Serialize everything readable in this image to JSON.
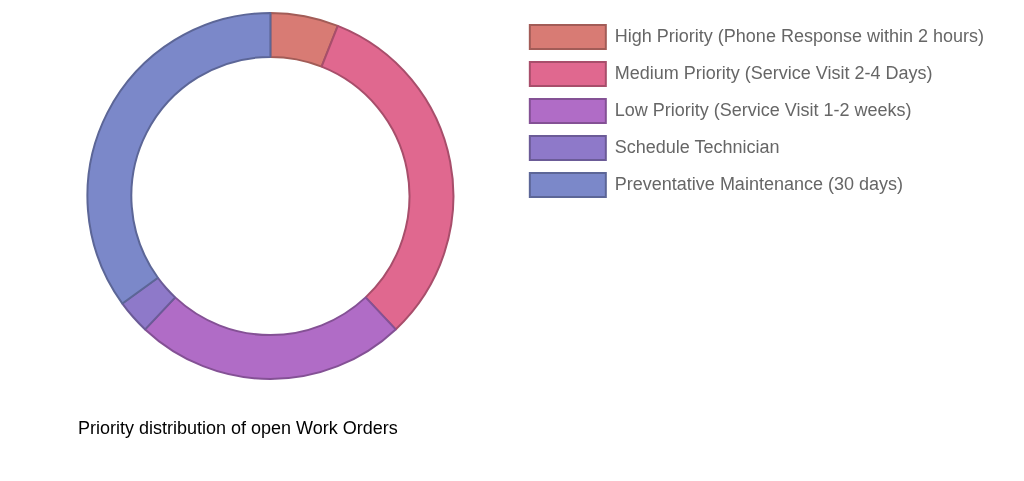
{
  "chart_data": {
    "type": "donut",
    "title": "Priority distribution of open Work Orders",
    "categories": [
      "High Priority (Phone Response within 2 hours)",
      "Medium Priority (Service Visit 2-4 Days)",
      "Low Priority (Service Visit 1-2 weeks)",
      "Schedule Technician",
      "Preventative Maintenance (30 days)"
    ],
    "values": [
      6,
      32,
      24,
      3,
      35
    ],
    "colors": [
      "#d87b74",
      "#e0688f",
      "#b06cc6",
      "#8e79c9",
      "#7b88c9"
    ],
    "legend": "top right"
  }
}
